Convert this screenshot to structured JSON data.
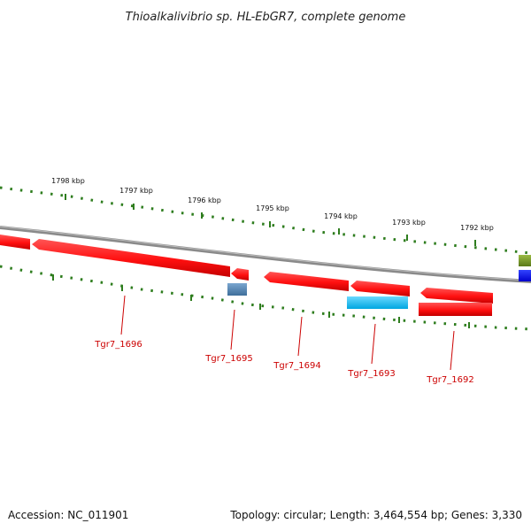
{
  "title": "Thioalkalivibrio sp. HL-EbGR7, complete genome",
  "ruler_labels": [
    "1798 kbp",
    "1797 kbp",
    "1796 kbp",
    "1795 kbp",
    "1794 kbp",
    "1793 kbp",
    "1792 kbp"
  ],
  "genes": [
    {
      "label": "Tgr7_1696",
      "color": "#ff1a1a",
      "strand": "reverse"
    },
    {
      "label": "Tgr7_1695",
      "color": "#ff1a1a",
      "strand": "reverse"
    },
    {
      "label": "Tgr7_1694",
      "color": "#ff1a1a",
      "strand": "reverse"
    },
    {
      "label": "Tgr7_1693",
      "color": "#ff1a1a",
      "strand": "reverse"
    },
    {
      "label": "Tgr7_1692",
      "color": "#ff1a1a",
      "strand": "reverse"
    }
  ],
  "feature_colors": {
    "cds": "#ff1a1a",
    "trna": "#4682b4",
    "rrna": "#00bfff",
    "forward_misc": "#6b8e23",
    "forward_cds": "#0000ff",
    "backbone": "#888888",
    "ruler": "#2e7d1e"
  },
  "footer": {
    "accession": "Accession: NC_011901",
    "summary": "Topology: circular; Length: 3,464,554 bp; Genes: 3,330"
  }
}
